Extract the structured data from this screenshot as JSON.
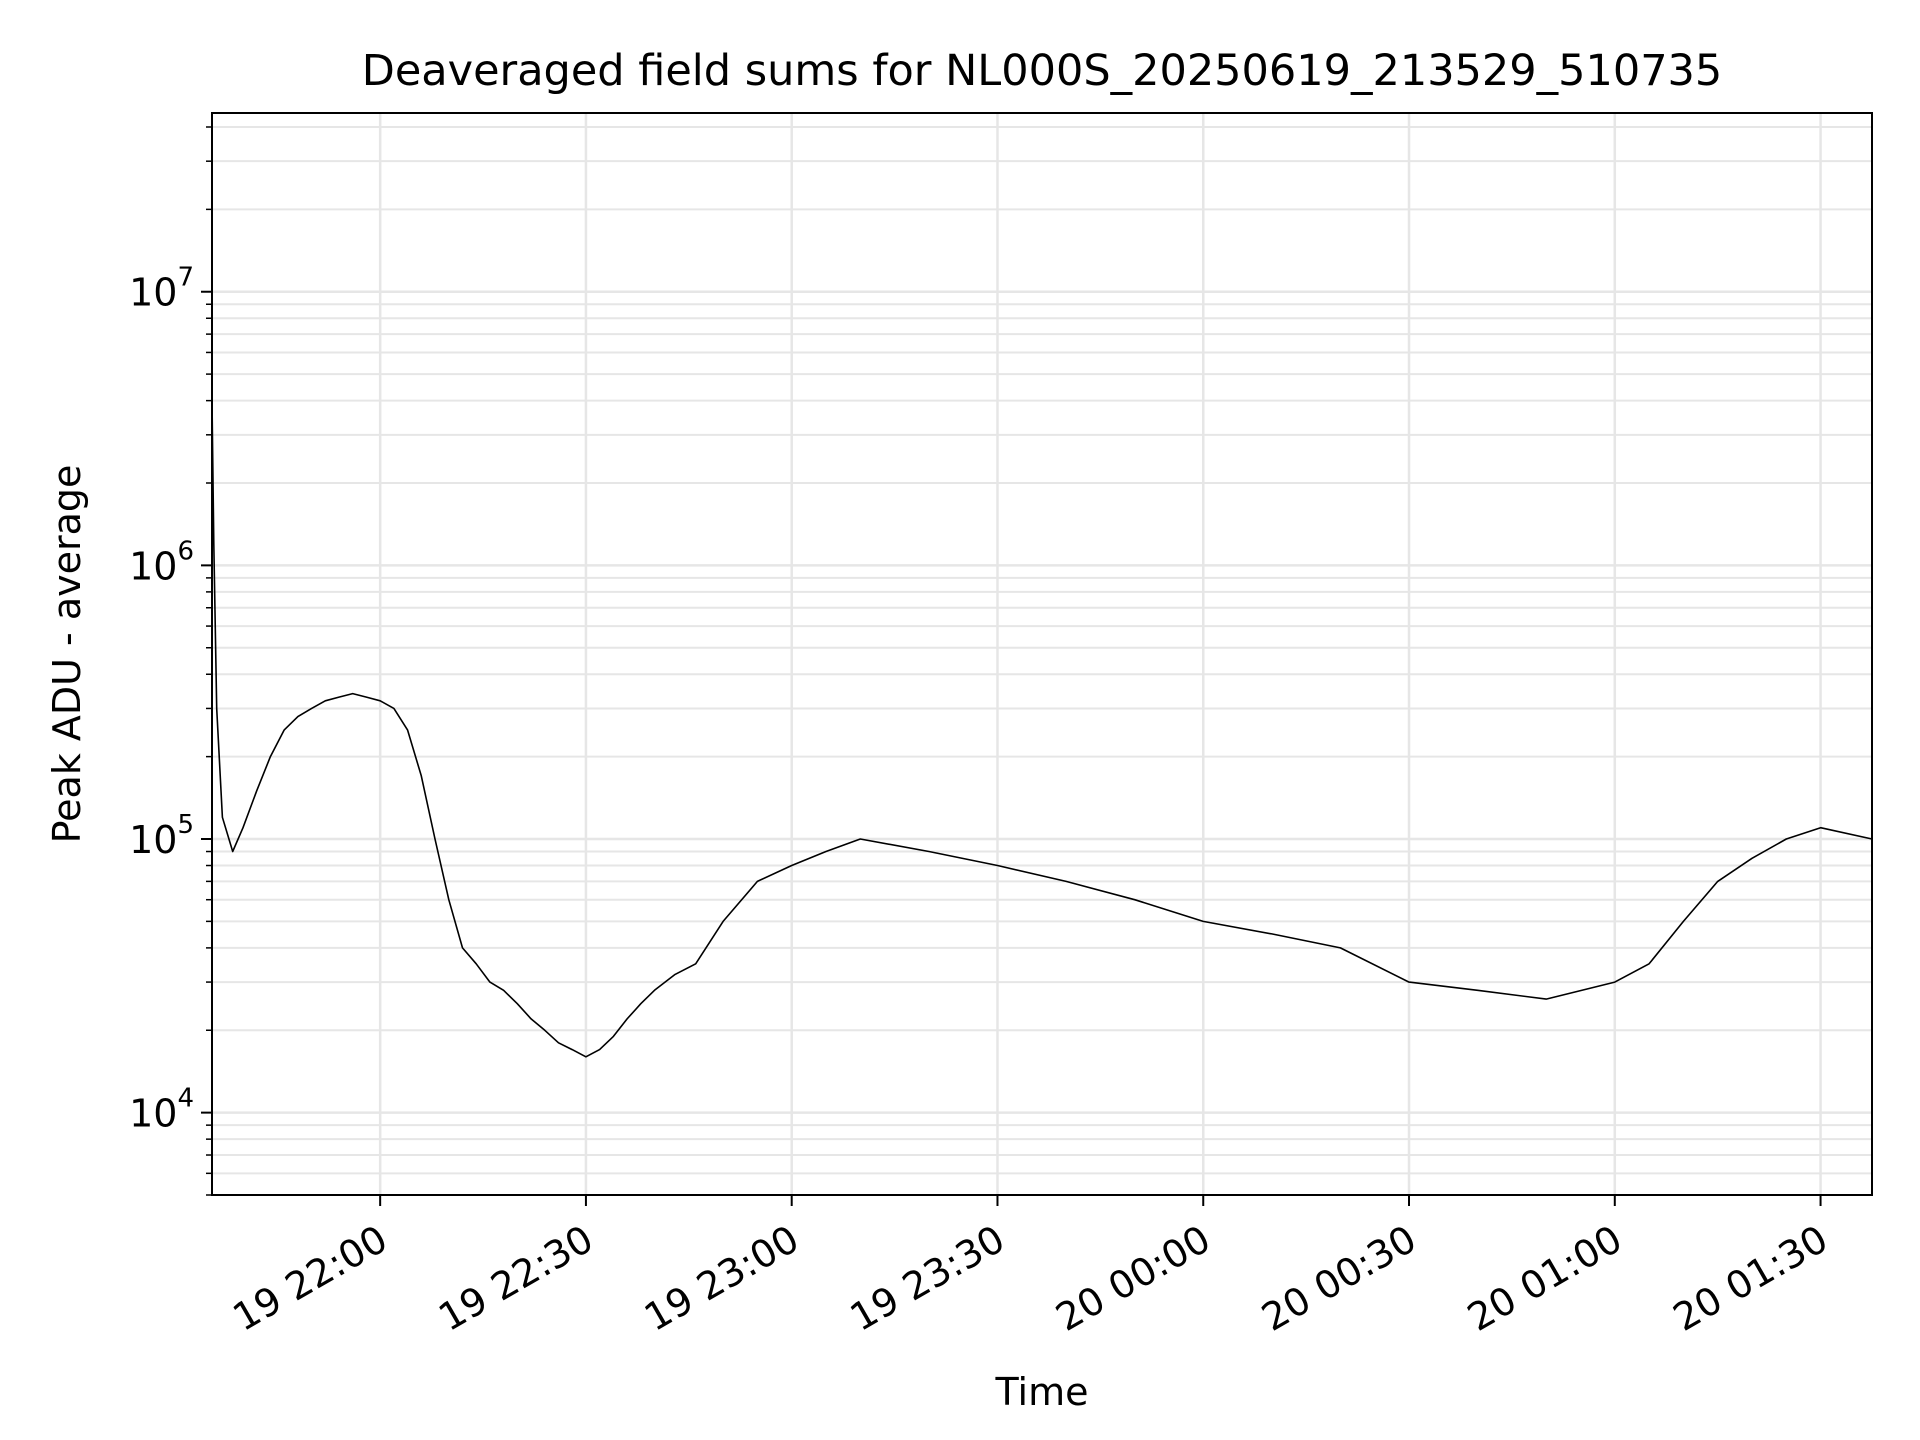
{
  "chart_data": {
    "type": "line",
    "title": "Deaveraged field sums for NL000S_20250619_213529_510735",
    "xlabel": "Time",
    "ylabel": "Peak ADU - average",
    "x_type": "time",
    "xlim": [
      "2025-06-19T21:35:29",
      "2025-06-20T01:37:30"
    ],
    "ylim": [
      5000,
      45000000
    ],
    "y_scale": "log",
    "grid": "on (major and minor)",
    "legend": "none",
    "x_ticks": [
      {
        "t": "2025-06-19T22:00:00",
        "label": "19 22:00"
      },
      {
        "t": "2025-06-19T22:30:00",
        "label": "19 22:30"
      },
      {
        "t": "2025-06-19T23:00:00",
        "label": "19 23:00"
      },
      {
        "t": "2025-06-19T23:30:00",
        "label": "19 23:30"
      },
      {
        "t": "2025-06-20T00:00:00",
        "label": "20 00:00"
      },
      {
        "t": "2025-06-20T00:30:00",
        "label": "20 00:30"
      },
      {
        "t": "2025-06-20T01:00:00",
        "label": "20 01:00"
      },
      {
        "t": "2025-06-20T01:30:00",
        "label": "20 01:30"
      }
    ],
    "y_ticks": [
      {
        "value": 10000,
        "base": "10",
        "exp": "4"
      },
      {
        "value": 100000,
        "base": "10",
        "exp": "5"
      },
      {
        "value": 1000000,
        "base": "10",
        "exp": "6"
      },
      {
        "value": 10000000,
        "base": "10",
        "exp": "7"
      }
    ],
    "series": [
      {
        "color": "#000000",
        "x": [
          "2025-06-19T21:35:29",
          "2025-06-19T21:35:45",
          "2025-06-19T21:36:10",
          "2025-06-19T21:37:00",
          "2025-06-19T21:38:30",
          "2025-06-19T21:40:00",
          "2025-06-19T21:42:00",
          "2025-06-19T21:44:00",
          "2025-06-19T21:46:00",
          "2025-06-19T21:48:00",
          "2025-06-19T21:50:00",
          "2025-06-19T21:52:00",
          "2025-06-19T21:54:00",
          "2025-06-19T21:56:00",
          "2025-06-19T21:58:00",
          "2025-06-19T22:00:00",
          "2025-06-19T22:02:00",
          "2025-06-19T22:04:00",
          "2025-06-19T22:06:00",
          "2025-06-19T22:08:00",
          "2025-06-19T22:10:00",
          "2025-06-19T22:12:00",
          "2025-06-19T22:14:00",
          "2025-06-19T22:16:00",
          "2025-06-19T22:18:00",
          "2025-06-19T22:20:00",
          "2025-06-19T22:22:00",
          "2025-06-19T22:24:00",
          "2025-06-19T22:26:00",
          "2025-06-19T22:28:00",
          "2025-06-19T22:30:00",
          "2025-06-19T22:32:00",
          "2025-06-19T22:34:00",
          "2025-06-19T22:36:00",
          "2025-06-19T22:38:00",
          "2025-06-19T22:40:00",
          "2025-06-19T22:43:00",
          "2025-06-19T22:46:00",
          "2025-06-19T22:50:00",
          "2025-06-19T22:55:00",
          "2025-06-19T23:00:00",
          "2025-06-19T23:05:00",
          "2025-06-19T23:10:00",
          "2025-06-19T23:20:00",
          "2025-06-19T23:30:00",
          "2025-06-19T23:40:00",
          "2025-06-19T23:50:00",
          "2025-06-20T00:00:00",
          "2025-06-20T00:10:00",
          "2025-06-20T00:20:00",
          "2025-06-20T00:30:00",
          "2025-06-20T00:40:00",
          "2025-06-20T00:50:00",
          "2025-06-20T01:00:00",
          "2025-06-20T01:05:00",
          "2025-06-20T01:10:00",
          "2025-06-20T01:15:00",
          "2025-06-20T01:20:00",
          "2025-06-20T01:25:00",
          "2025-06-20T01:30:00",
          "2025-06-20T01:37:30"
        ],
        "values": [
          4000000,
          1200000,
          300000,
          120000,
          90000,
          110000,
          150000,
          200000,
          250000,
          280000,
          300000,
          320000,
          330000,
          340000,
          330000,
          320000,
          300000,
          250000,
          170000,
          100000,
          60000,
          40000,
          35000,
          30000,
          28000,
          25000,
          22000,
          20000,
          18000,
          17000,
          16000,
          17000,
          19000,
          22000,
          25000,
          28000,
          32000,
          35000,
          50000,
          70000,
          80000,
          90000,
          100000,
          90000,
          80000,
          70000,
          60000,
          50000,
          45000,
          40000,
          30000,
          28000,
          26000,
          30000,
          35000,
          50000,
          70000,
          85000,
          100000,
          110000,
          100000
        ]
      }
    ]
  }
}
